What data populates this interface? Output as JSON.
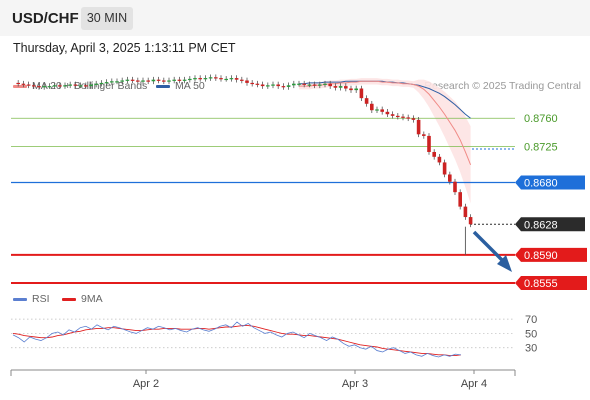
{
  "header": {
    "pair": "USD/CHF",
    "timeframe": "30 MIN",
    "datetime": "Thursday, April 3, 2025 1:13:11 PM CET"
  },
  "legend": {
    "ma20_label": "MA 20 + Bollinger Bands",
    "ma50_label": "MA 50",
    "rsi_label": "RSI",
    "ma9_label": "9MA",
    "credit": "Research © 2025 Trading Central"
  },
  "colors": {
    "ma20": "#f08a86",
    "ma50": "#2f5fa5",
    "bollinger_fill": "#fde3e3",
    "candle_up": "#2a9a3c",
    "candle_down": "#cc2222",
    "resistance": "#7dbb4c",
    "pivot": "#1e6fd9",
    "support": "#e31b1b",
    "current": "#2b2b2b",
    "rsi": "#5b7fd0",
    "rsi_ma": "#e02020"
  },
  "chart_data": {
    "type": "candlestick",
    "price_axis": {
      "min": 0.854,
      "max": 0.883
    },
    "time_axis": {
      "ticks": [
        "Apr 2",
        "Apr 3",
        "Apr 4"
      ]
    },
    "close_series": [
      0.8804,
      0.8803,
      0.8802,
      0.8801,
      0.88,
      0.8799,
      0.88,
      0.88,
      0.8801,
      0.88,
      0.8801,
      0.8802,
      0.8801,
      0.8801,
      0.88,
      0.8802,
      0.8803,
      0.8804,
      0.8805,
      0.8806,
      0.8806,
      0.8807,
      0.8808,
      0.8807,
      0.8806,
      0.8807,
      0.8806,
      0.8808,
      0.8807,
      0.8806,
      0.8807,
      0.8808,
      0.8807,
      0.8808,
      0.8809,
      0.881,
      0.8809,
      0.881,
      0.8811,
      0.881,
      0.8809,
      0.8809,
      0.881,
      0.8808,
      0.8807,
      0.8804,
      0.8803,
      0.8802,
      0.88,
      0.8801,
      0.8802,
      0.88,
      0.8799,
      0.8801,
      0.8803,
      0.8803,
      0.8802,
      0.8802,
      0.8801,
      0.8802,
      0.8803,
      0.88,
      0.8798,
      0.88,
      0.8797,
      0.8795,
      0.8797,
      0.8785,
      0.8778,
      0.877,
      0.8771,
      0.8768,
      0.8765,
      0.8763,
      0.8762,
      0.8761,
      0.876,
      0.8758,
      0.874,
      0.8738,
      0.8718,
      0.8712,
      0.8705,
      0.869,
      0.8681,
      0.8668,
      0.865,
      0.8637,
      0.8628
    ],
    "ma20": [
      0.88,
      0.88,
      0.88,
      0.8801,
      0.8801,
      0.8802,
      0.8803,
      0.8803,
      0.8804,
      0.8804,
      0.8805,
      0.8805,
      0.8806,
      0.8806,
      0.8806,
      0.8806,
      0.8805,
      0.8805,
      0.8804,
      0.8804,
      0.8803,
      0.8803,
      0.8802,
      0.88,
      0.8796,
      0.879,
      0.8782,
      0.8774,
      0.8765,
      0.8755,
      0.8745,
      0.8733,
      0.8718,
      0.8702
    ],
    "ma50": [
      0.8803,
      0.8803,
      0.8804,
      0.8804,
      0.8804,
      0.8805,
      0.8805,
      0.8805,
      0.8805,
      0.8806,
      0.8806,
      0.8806,
      0.8806,
      0.8806,
      0.8806,
      0.8806,
      0.8806,
      0.8805,
      0.8805,
      0.8804,
      0.8804,
      0.8803,
      0.8802,
      0.8801,
      0.8799,
      0.8797,
      0.8794,
      0.8791,
      0.8787,
      0.8782,
      0.8777,
      0.8771,
      0.8765,
      0.876
    ],
    "levels": [
      {
        "value": 0.876,
        "label": "0.8760",
        "role": "resistance"
      },
      {
        "value": 0.8725,
        "label": "0.8725",
        "role": "resistance"
      },
      {
        "value": 0.868,
        "label": "0.8680",
        "role": "pivot"
      },
      {
        "value": 0.8628,
        "label": "0.8628",
        "role": "current"
      },
      {
        "value": 0.859,
        "label": "0.8590",
        "role": "support"
      },
      {
        "value": 0.8555,
        "label": "0.8555",
        "role": "support"
      }
    ],
    "rsi": {
      "levels": [
        70,
        50,
        30
      ],
      "values": [
        48,
        44,
        38,
        45,
        42,
        40,
        44,
        50,
        52,
        48,
        55,
        52,
        58,
        60,
        56,
        62,
        58,
        55,
        60,
        58,
        55,
        52,
        50,
        54,
        58,
        56,
        60,
        58,
        55,
        57,
        54,
        52,
        56,
        58,
        55,
        53,
        56,
        60,
        62,
        58,
        66,
        60,
        64,
        58,
        54,
        50,
        52,
        48,
        45,
        50,
        52,
        48,
        44,
        50,
        47,
        44,
        40,
        45,
        42,
        36,
        32,
        34,
        30,
        28,
        32,
        26,
        24,
        28,
        30,
        26,
        22,
        24,
        20,
        18,
        22,
        19,
        17,
        20,
        18,
        21,
        20
      ],
      "ma9": [
        50,
        49,
        47,
        46,
        45,
        44,
        44,
        45,
        47,
        48,
        50,
        52,
        53,
        55,
        56,
        57,
        57,
        58,
        58,
        57,
        56,
        55,
        54,
        54,
        55,
        56,
        56,
        57,
        57,
        57,
        56,
        56,
        56,
        57,
        57,
        56,
        57,
        58,
        59,
        59,
        60,
        61,
        61,
        60,
        58,
        56,
        54,
        52,
        50,
        49,
        49,
        48,
        47,
        47,
        46,
        45,
        44,
        43,
        42,
        40,
        38,
        36,
        34,
        33,
        32,
        31,
        29,
        28,
        27,
        26,
        25,
        24,
        23,
        22,
        22,
        21,
        20,
        20,
        19,
        19,
        20
      ]
    }
  }
}
